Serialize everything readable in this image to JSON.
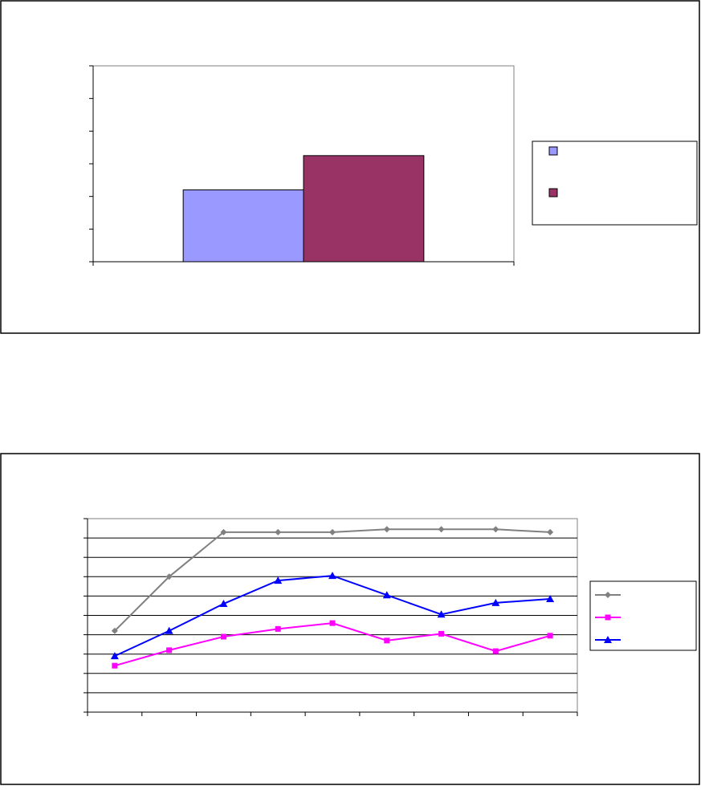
{
  "chart_data": [
    {
      "type": "bar",
      "categories": [
        ""
      ],
      "series": [
        {
          "values": [
            2.2
          ],
          "color": "#9999ff"
        },
        {
          "values": [
            3.25
          ],
          "color": "#993366"
        }
      ],
      "ylim": [
        0,
        6
      ],
      "legend": "right",
      "legend_entries": [
        "",
        ""
      ],
      "grid": false
    },
    {
      "type": "line",
      "x": [
        1,
        2,
        3,
        4,
        5,
        6,
        7,
        8,
        9
      ],
      "series": [
        {
          "values": [
            4.2,
            7,
            9.3,
            9.3,
            9.3,
            9.45,
            9.45,
            9.45,
            9.3
          ],
          "color": "#808080",
          "marker": "diamond"
        },
        {
          "values": [
            2.4,
            3.2,
            3.9,
            4.3,
            4.6,
            3.7,
            4.05,
            3.15,
            3.95
          ],
          "color": "#ff00ff",
          "marker": "square"
        },
        {
          "values": [
            2.9,
            4.2,
            5.6,
            6.8,
            7.05,
            6.05,
            5.05,
            5.65,
            5.85
          ],
          "color": "#0000ff",
          "marker": "triangle"
        }
      ],
      "ylim": [
        0,
        10
      ],
      "legend": "right",
      "legend_entries": [
        "",
        "",
        ""
      ],
      "grid": true
    }
  ]
}
